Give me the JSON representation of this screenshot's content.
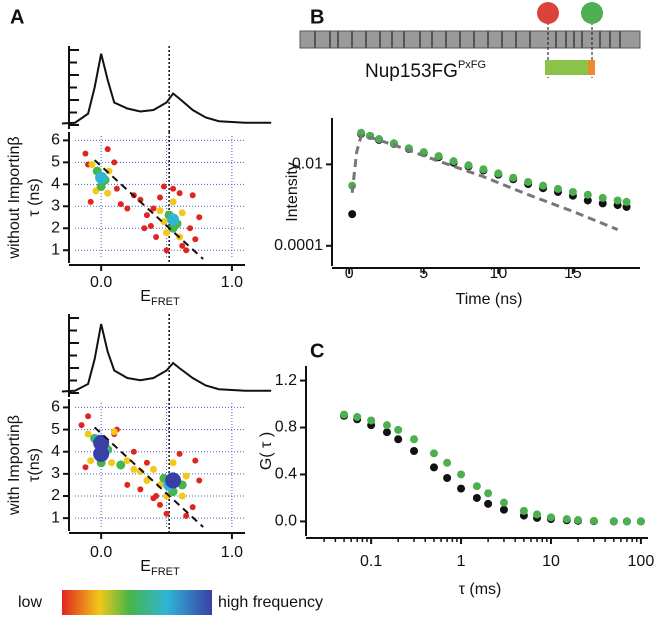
{
  "chart_data": [
    {
      "type": "line",
      "panel": "A",
      "x": [
        -0.3,
        -0.2,
        -0.1,
        -0.05,
        0,
        0.05,
        0.1,
        0.2,
        0.3,
        0.4,
        0.5,
        0.55,
        0.6,
        0.7,
        0.8,
        0.9,
        1.0,
        1.1,
        1.3
      ],
      "values": [
        0.02,
        0.03,
        0.15,
        0.5,
        0.95,
        0.6,
        0.3,
        0.22,
        0.18,
        0.2,
        0.3,
        0.42,
        0.35,
        0.2,
        0.1,
        0.05,
        0.04,
        0.03,
        0.03
      ],
      "color": "#111111",
      "xlim": [
        -0.2,
        1.1
      ],
      "ylim": [
        0,
        1
      ],
      "vline": 0.52
    },
    {
      "type": "scatter",
      "xlim": [
        -0.2,
        1.1
      ],
      "ylim": [
        0.6,
        6.2
      ],
      "grid": true,
      "xgrid": [
        0,
        0.5,
        1.0
      ],
      "xticks": [
        {
          "value": 0,
          "label": "0.0"
        },
        {
          "value": 1,
          "label": "1.0"
        }
      ],
      "yticks": [
        1,
        2,
        3,
        4,
        5,
        6
      ],
      "xlabel": "E",
      "xlabel_sub": "FRET",
      "ylabel": [
        "without Importinβ",
        "τ (ns)"
      ],
      "vline": 0.52,
      "fret_line": {
        "x": [
          -0.05,
          0.78
        ],
        "y": [
          5.1,
          0.6
        ]
      },
      "series": [
        {
          "color": "#e0251f",
          "x": [
            -0.12,
            -0.08,
            0.1,
            0.12,
            0.15,
            0.2,
            0.25,
            0.3,
            0.35,
            0.38,
            0.42,
            0.45,
            0.62,
            0.68,
            0.7,
            0.72,
            0.75,
            0.5,
            0.55,
            0.6,
            0.4,
            0.33,
            0.05,
            -0.1,
            0.65,
            0.48
          ],
          "y": [
            5.4,
            3.2,
            5.0,
            3.8,
            3.1,
            2.9,
            3.5,
            3.3,
            2.6,
            2.1,
            1.6,
            3.4,
            1.2,
            2.0,
            3.5,
            1.5,
            2.5,
            1.0,
            3.8,
            3.6,
            2.9,
            2.0,
            5.6,
            4.9,
            1.0,
            3.9
          ]
        },
        {
          "color": "#f2c81a",
          "x": [
            -0.07,
            0.06,
            -0.04,
            0.05,
            0.45,
            0.62,
            0.5,
            0.6,
            0.55,
            0.48
          ],
          "y": [
            4.9,
            4.6,
            3.7,
            3.6,
            2.8,
            2.7,
            1.8,
            1.6,
            3.2,
            2.3
          ]
        },
        {
          "color": "#46b54a",
          "x": [
            -0.03,
            0.03,
            0.0,
            0.52,
            0.58,
            0.55
          ],
          "y": [
            4.6,
            4.2,
            3.9,
            2.6,
            2.2,
            2.0
          ]
        },
        {
          "color": "#2fb5d6",
          "x": [
            0.0,
            0.55
          ],
          "y": [
            4.3,
            2.4
          ]
        }
      ]
    },
    {
      "type": "line",
      "x": [
        -0.3,
        -0.2,
        -0.1,
        -0.05,
        0,
        0.05,
        0.1,
        0.2,
        0.3,
        0.4,
        0.5,
        0.55,
        0.6,
        0.7,
        0.8,
        0.9,
        1.0,
        1.1,
        1.3
      ],
      "values": [
        0.02,
        0.03,
        0.12,
        0.45,
        0.92,
        0.55,
        0.3,
        0.2,
        0.17,
        0.2,
        0.3,
        0.4,
        0.33,
        0.2,
        0.1,
        0.05,
        0.04,
        0.03,
        0.03
      ],
      "color": "#111111",
      "xlim": [
        -0.2,
        1.1
      ],
      "ylim": [
        0,
        1
      ],
      "vline": 0.52
    },
    {
      "type": "scatter",
      "xlim": [
        -0.2,
        1.1
      ],
      "ylim": [
        0.6,
        6.2
      ],
      "grid": true,
      "xgrid": [
        0,
        0.5,
        1.0
      ],
      "xticks": [
        {
          "value": 0,
          "label": "0.0"
        },
        {
          "value": 1,
          "label": "1.0"
        }
      ],
      "yticks": [
        1,
        2,
        3,
        4,
        5,
        6
      ],
      "xlabel": "E",
      "xlabel_sub": "FRET",
      "ylabel": [
        "with Importinβ",
        "τ(ns)"
      ],
      "vline": 0.52,
      "fret_line": {
        "x": [
          -0.05,
          0.78
        ],
        "y": [
          5.1,
          0.6
        ]
      },
      "series": [
        {
          "color": "#e0251f",
          "x": [
            -0.15,
            -0.12,
            0.12,
            0.2,
            0.3,
            0.4,
            0.45,
            0.7,
            0.75,
            0.72,
            0.5,
            0.35,
            0.1,
            -0.1,
            0.65,
            0.6,
            0.25,
            0.42
          ],
          "y": [
            5.2,
            3.3,
            5.0,
            2.5,
            2.3,
            1.9,
            1.6,
            1.5,
            2.7,
            3.6,
            1.2,
            3.5,
            4.8,
            5.6,
            1.1,
            3.9,
            4.0,
            2.0
          ]
        },
        {
          "color": "#f2c81a",
          "x": [
            -0.1,
            0.1,
            -0.08,
            0.08,
            0.2,
            0.3,
            0.4,
            0.45,
            0.65,
            0.62,
            0.5,
            0.55,
            0.25,
            0.35
          ],
          "y": [
            4.8,
            4.9,
            3.6,
            3.5,
            3.6,
            3.1,
            3.2,
            2.5,
            2.9,
            2.0,
            2.0,
            3.5,
            3.2,
            2.7
          ]
        },
        {
          "color": "#46b54a",
          "x": [
            -0.05,
            0.05,
            0.0,
            0.48,
            0.62,
            0.55,
            0.15
          ],
          "y": [
            4.6,
            4.1,
            3.5,
            2.8,
            2.5,
            2.2,
            3.4
          ]
        },
        {
          "color": "#2fb5d6",
          "x": [
            -0.02,
            0.02,
            0.55,
            0.52
          ],
          "y": [
            4.5,
            4.0,
            2.8,
            2.5
          ]
        },
        {
          "color": "#3a3fa6",
          "x": [
            0.0,
            0.0,
            0.55
          ],
          "y": [
            4.4,
            3.9,
            2.7
          ]
        }
      ]
    },
    {
      "type": "scatter",
      "panel": "B",
      "xlim": [
        -0.75,
        19.5
      ],
      "ylim": [
        4e-05,
        0.11
      ],
      "ylog": true,
      "xticks": [
        0,
        5,
        10,
        15
      ],
      "yticks": [
        0.0001,
        0.01
      ],
      "xlabel": "Time (ns)",
      "ylabel": [
        "Intensity"
      ],
      "series": [
        {
          "color": "#111111",
          "x": [
            0.2,
            0.8,
            1.4,
            2,
            3,
            4,
            5,
            6,
            7,
            8,
            9,
            10,
            11,
            12,
            13,
            14,
            15,
            16,
            17,
            18,
            18.6
          ],
          "y": [
            0.0006,
            0.056,
            0.05,
            0.04,
            0.032,
            0.024,
            0.019,
            0.015,
            0.011,
            0.0089,
            0.0071,
            0.0056,
            0.0043,
            0.0033,
            0.0026,
            0.0021,
            0.0017,
            0.0013,
            0.0011,
            0.001,
            0.0009
          ]
        },
        {
          "color": "#4caf50",
          "x": [
            0.2,
            0.8,
            1.4,
            2,
            3,
            4,
            5,
            6,
            7,
            8,
            9,
            10,
            11,
            12,
            13,
            14,
            15,
            16,
            17,
            18,
            18.6
          ],
          "y": [
            0.003,
            0.06,
            0.05,
            0.042,
            0.033,
            0.025,
            0.02,
            0.016,
            0.012,
            0.0095,
            0.0076,
            0.006,
            0.0047,
            0.0037,
            0.003,
            0.0025,
            0.0021,
            0.0018,
            0.0015,
            0.0013,
            0.0012
          ]
        },
        {
          "color": "#777777",
          "line": "dashed",
          "x": [
            0.2,
            0.5,
            0.8,
            1.5,
            3,
            6,
            9,
            12,
            15,
            18
          ],
          "y": [
            0.002,
            0.02,
            0.05,
            0.045,
            0.03,
            0.012,
            0.005,
            0.0018,
            0.0007,
            0.00025
          ]
        }
      ]
    },
    {
      "type": "scatter",
      "panel": "C",
      "xlim": [
        0.022,
        120
      ],
      "xlog": true,
      "ylim": [
        -0.09,
        1.29
      ],
      "xticks": [
        0.1,
        1,
        10,
        100
      ],
      "yticks": [
        {
          "value": 0,
          "label": "0.0"
        },
        0.4,
        0.8,
        1.2
      ],
      "xlabel": "τ (ms)",
      "ylabel": [
        "G( τ )"
      ],
      "series": [
        {
          "color": "#111111",
          "x": [
            0.05,
            0.07,
            0.1,
            0.15,
            0.2,
            0.3,
            0.5,
            0.7,
            1,
            1.5,
            2,
            3,
            5,
            7,
            10,
            15,
            20,
            30,
            50,
            70,
            100
          ],
          "y": [
            0.9,
            0.87,
            0.82,
            0.76,
            0.7,
            0.6,
            0.46,
            0.37,
            0.28,
            0.2,
            0.15,
            0.1,
            0.05,
            0.03,
            0.02,
            0.01,
            0.005,
            0.002,
            0,
            0,
            0
          ]
        },
        {
          "color": "#4caf50",
          "x": [
            0.05,
            0.07,
            0.1,
            0.15,
            0.2,
            0.3,
            0.5,
            0.7,
            1,
            1.5,
            2,
            3,
            5,
            7,
            10,
            15,
            20,
            30,
            50,
            70,
            100
          ],
          "y": [
            0.91,
            0.89,
            0.86,
            0.82,
            0.78,
            0.7,
            0.58,
            0.5,
            0.4,
            0.3,
            0.24,
            0.16,
            0.09,
            0.06,
            0.035,
            0.02,
            0.012,
            0.005,
            0.002,
            0,
            0
          ]
        }
      ]
    }
  ],
  "diagram": {
    "label": "Nup153FG",
    "superscript": "PxFG"
  },
  "colorbar": {
    "low": "low",
    "high": "high frequency"
  }
}
